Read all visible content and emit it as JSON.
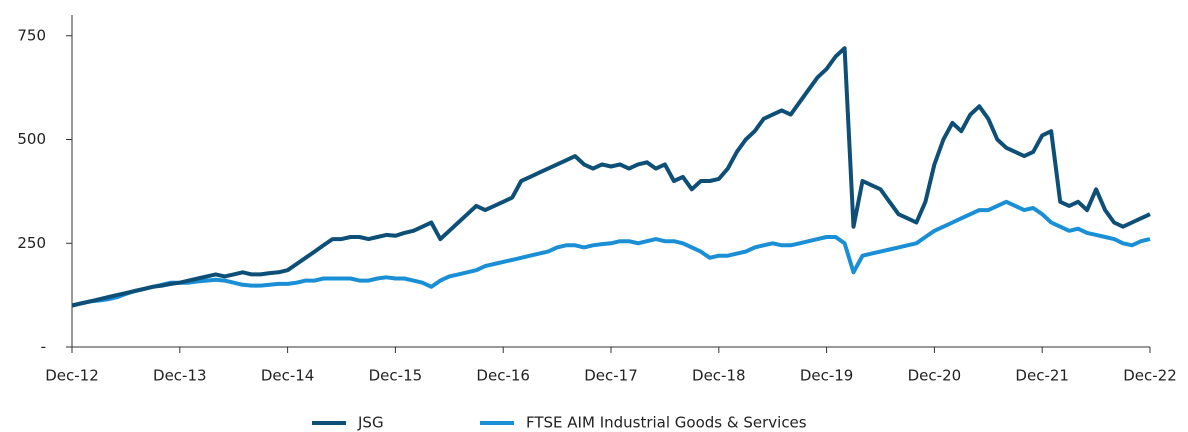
{
  "chart_data": {
    "type": "line",
    "x": [
      0,
      1,
      2,
      3,
      4,
      5,
      6,
      7,
      8,
      9,
      10,
      11,
      12,
      13,
      14,
      15,
      16,
      17,
      18,
      19,
      20,
      21,
      22,
      23,
      24,
      25,
      26,
      27,
      28,
      29,
      30,
      31,
      32,
      33,
      34,
      35,
      36,
      37,
      38,
      39,
      40,
      41,
      42,
      43,
      44,
      45,
      46,
      47,
      48,
      49,
      50,
      51,
      52,
      53,
      54,
      55,
      56,
      57,
      58,
      59,
      60,
      61,
      62,
      63,
      64,
      65,
      66,
      67,
      68,
      69,
      70,
      71,
      72,
      73,
      74,
      75,
      76,
      77,
      78,
      79,
      80,
      81,
      82,
      83,
      84,
      85,
      86,
      87,
      88,
      89,
      90,
      91,
      92,
      93,
      94,
      95,
      96,
      97,
      98,
      99,
      100,
      101,
      102,
      103,
      104,
      105,
      106,
      107,
      108,
      109,
      110,
      111,
      112,
      113,
      114,
      115,
      116,
      117,
      118,
      119,
      120
    ],
    "series": [
      {
        "name": "JSG",
        "color": "#0d4f77",
        "values": [
          100,
          105,
          110,
          115,
          120,
          125,
          130,
          135,
          140,
          145,
          148,
          152,
          155,
          160,
          165,
          170,
          175,
          170,
          175,
          180,
          175,
          175,
          178,
          180,
          185,
          200,
          215,
          230,
          245,
          260,
          260,
          265,
          265,
          260,
          265,
          270,
          268,
          275,
          280,
          290,
          300,
          260,
          280,
          300,
          320,
          340,
          330,
          340,
          350,
          360,
          400,
          410,
          420,
          430,
          440,
          450,
          460,
          440,
          430,
          440,
          435,
          440,
          430,
          440,
          445,
          430,
          440,
          400,
          410,
          380,
          400,
          400,
          405,
          430,
          470,
          500,
          520,
          550,
          560,
          570,
          560,
          590,
          620,
          650,
          670,
          700,
          720,
          290,
          400,
          390,
          380,
          350,
          320,
          310,
          300,
          350,
          440,
          500,
          540,
          520,
          560,
          580,
          550,
          500,
          480,
          470,
          460,
          470,
          510,
          520,
          350,
          340,
          350,
          330,
          380,
          330,
          300,
          290,
          300,
          310,
          320
        ]
      },
      {
        "name": "FTSE AIM Industrial Goods & Services",
        "color": "#1a8fd6",
        "values": [
          100,
          105,
          110,
          112,
          115,
          120,
          128,
          135,
          140,
          145,
          150,
          155,
          155,
          155,
          158,
          160,
          162,
          160,
          155,
          150,
          148,
          148,
          150,
          152,
          152,
          155,
          160,
          160,
          165,
          165,
          165,
          165,
          160,
          160,
          165,
          168,
          165,
          165,
          160,
          155,
          145,
          160,
          170,
          175,
          180,
          185,
          195,
          200,
          205,
          210,
          215,
          220,
          225,
          230,
          240,
          245,
          245,
          240,
          245,
          248,
          250,
          255,
          255,
          250,
          255,
          260,
          255,
          255,
          250,
          240,
          230,
          215,
          220,
          220,
          225,
          230,
          240,
          245,
          250,
          245,
          245,
          250,
          255,
          260,
          265,
          265,
          250,
          180,
          220,
          225,
          230,
          235,
          240,
          245,
          250,
          265,
          280,
          290,
          300,
          310,
          320,
          330,
          330,
          340,
          350,
          340,
          330,
          335,
          320,
          300,
          290,
          280,
          285,
          275,
          270,
          265,
          260,
          250,
          245,
          255,
          260
        ]
      }
    ],
    "xlim": [
      0,
      120
    ],
    "xticks": [
      {
        "value": 0,
        "label": "Dec-12"
      },
      {
        "value": 12,
        "label": "Dec-13"
      },
      {
        "value": 24,
        "label": "Dec-14"
      },
      {
        "value": 36,
        "label": "Dec-15"
      },
      {
        "value": 48,
        "label": "Dec-16"
      },
      {
        "value": 60,
        "label": "Dec-17"
      },
      {
        "value": 72,
        "label": "Dec-18"
      },
      {
        "value": 84,
        "label": "Dec-19"
      },
      {
        "value": 96,
        "label": "Dec-20"
      },
      {
        "value": 108,
        "label": "Dec-21"
      },
      {
        "value": 120,
        "label": "Dec-22"
      }
    ],
    "ylim": [
      0,
      800
    ],
    "yticks": [
      {
        "value": 0,
        "label": "-"
      },
      250,
      500,
      750
    ],
    "legend": "bottom"
  }
}
